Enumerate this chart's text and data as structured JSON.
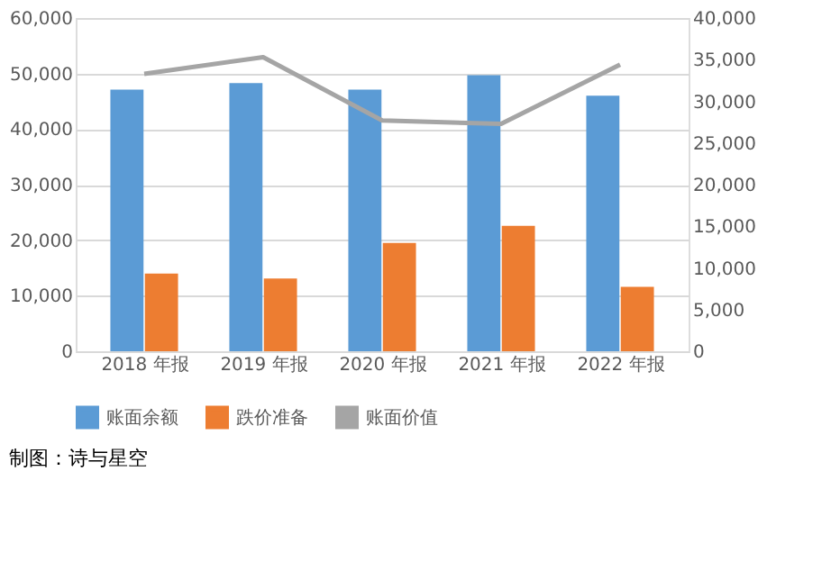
{
  "chart_data": {
    "type": "bar",
    "categories": [
      "2018 年报",
      "2019 年报",
      "2020 年报",
      "2021 年报",
      "2022 年报"
    ],
    "series": [
      {
        "name": "账面余额",
        "color": "#5b9bd5",
        "values": [
          47100,
          48300,
          47100,
          49700,
          46000
        ]
      },
      {
        "name": "跌价准备",
        "color": "#ed7d31",
        "values": [
          14000,
          13100,
          19500,
          22600,
          11600
        ]
      },
      {
        "name": "账面价值",
        "color": "#a5a5a5",
        "type": "line",
        "axis": "y2",
        "values": [
          33300,
          35300,
          27700,
          27300,
          34400
        ]
      }
    ],
    "ylim": [
      0,
      60000
    ],
    "yticks": [
      0,
      {
        "value": 10000,
        "label": "10,000"
      },
      {
        "value": 20000,
        "label": "20,000"
      },
      {
        "value": 30000,
        "label": "30,000"
      },
      {
        "value": 40000,
        "label": "40,000"
      },
      {
        "value": 50000,
        "label": "50,000"
      },
      {
        "value": 60000,
        "label": "60,000"
      }
    ],
    "y2lim": [
      0,
      40000
    ],
    "y2ticks": [
      0,
      {
        "value": 5000,
        "label": "5,000"
      },
      {
        "value": 10000,
        "label": "10,000"
      },
      {
        "value": 15000,
        "label": "15,000"
      },
      {
        "value": 20000,
        "label": "20,000"
      },
      {
        "value": 25000,
        "label": "25,000"
      },
      {
        "value": 30000,
        "label": "30,000"
      },
      {
        "value": 35000,
        "label": "35,000"
      },
      {
        "value": 40000,
        "label": "40,000"
      }
    ],
    "grid": "y",
    "legend": "bottom",
    "marker": "none",
    "annotations": [
      "制图：诗与星空"
    ]
  }
}
